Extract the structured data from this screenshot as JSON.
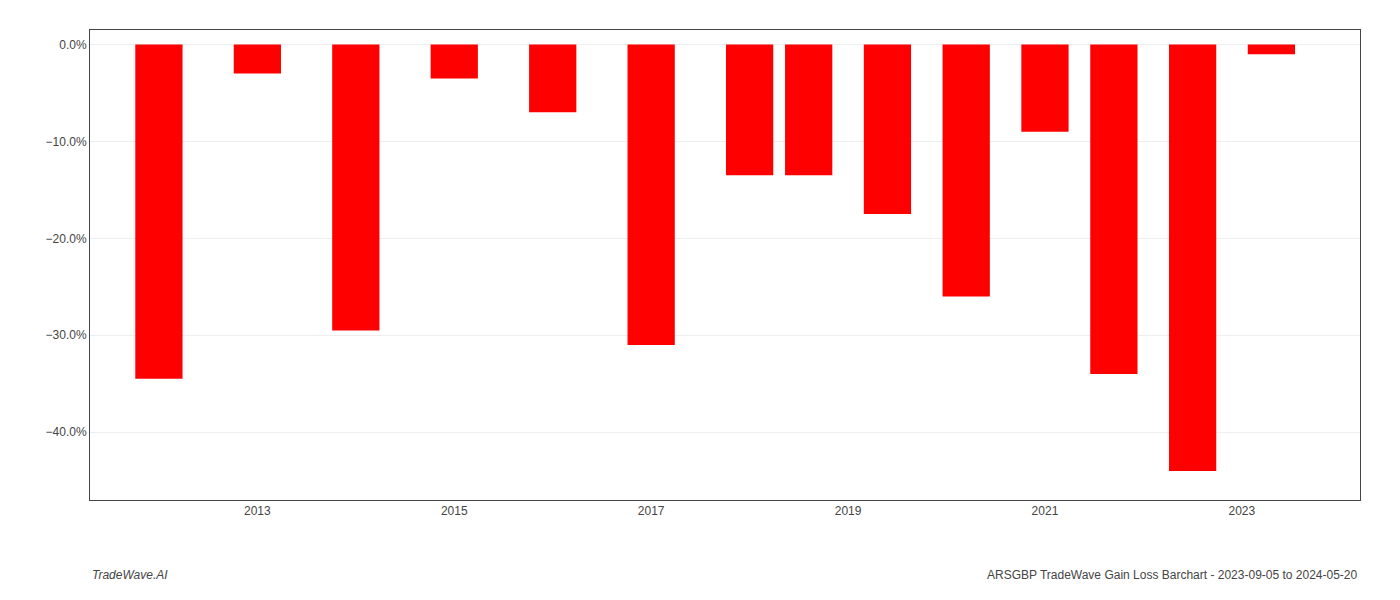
{
  "chart_data": {
    "type": "bar",
    "x": [
      2012,
      2013,
      2014,
      2015,
      2016,
      2017,
      2018,
      2018.6,
      2019.4,
      2020.2,
      2021,
      2021.7,
      2022.5,
      2023.3
    ],
    "values": [
      -34.5,
      -3.0,
      -29.5,
      -3.5,
      -7.0,
      -31.0,
      -13.5,
      -13.5,
      -17.5,
      -26.0,
      -9.0,
      -34.0,
      -44.0,
      -1.0
    ],
    "color": "#ff0000",
    "xlim": [
      2011.3,
      2024.2
    ],
    "xticks": [
      2013,
      2015,
      2017,
      2019,
      2021,
      2023
    ],
    "ylim": [
      -47,
      1.5
    ],
    "yticks": [
      {
        "value": 0,
        "label": "0.0%"
      },
      {
        "value": -10,
        "label": "−10.0%"
      },
      {
        "value": -20,
        "label": "−20.0%"
      },
      {
        "value": -30,
        "label": "−30.0%"
      },
      {
        "value": -40,
        "label": "−40.0%"
      }
    ],
    "grid": true,
    "annotations": [
      "TradeWave.AI",
      "ARSGBP TradeWave Gain Loss Barchart - 2023-09-05 to 2024-05-20"
    ]
  }
}
